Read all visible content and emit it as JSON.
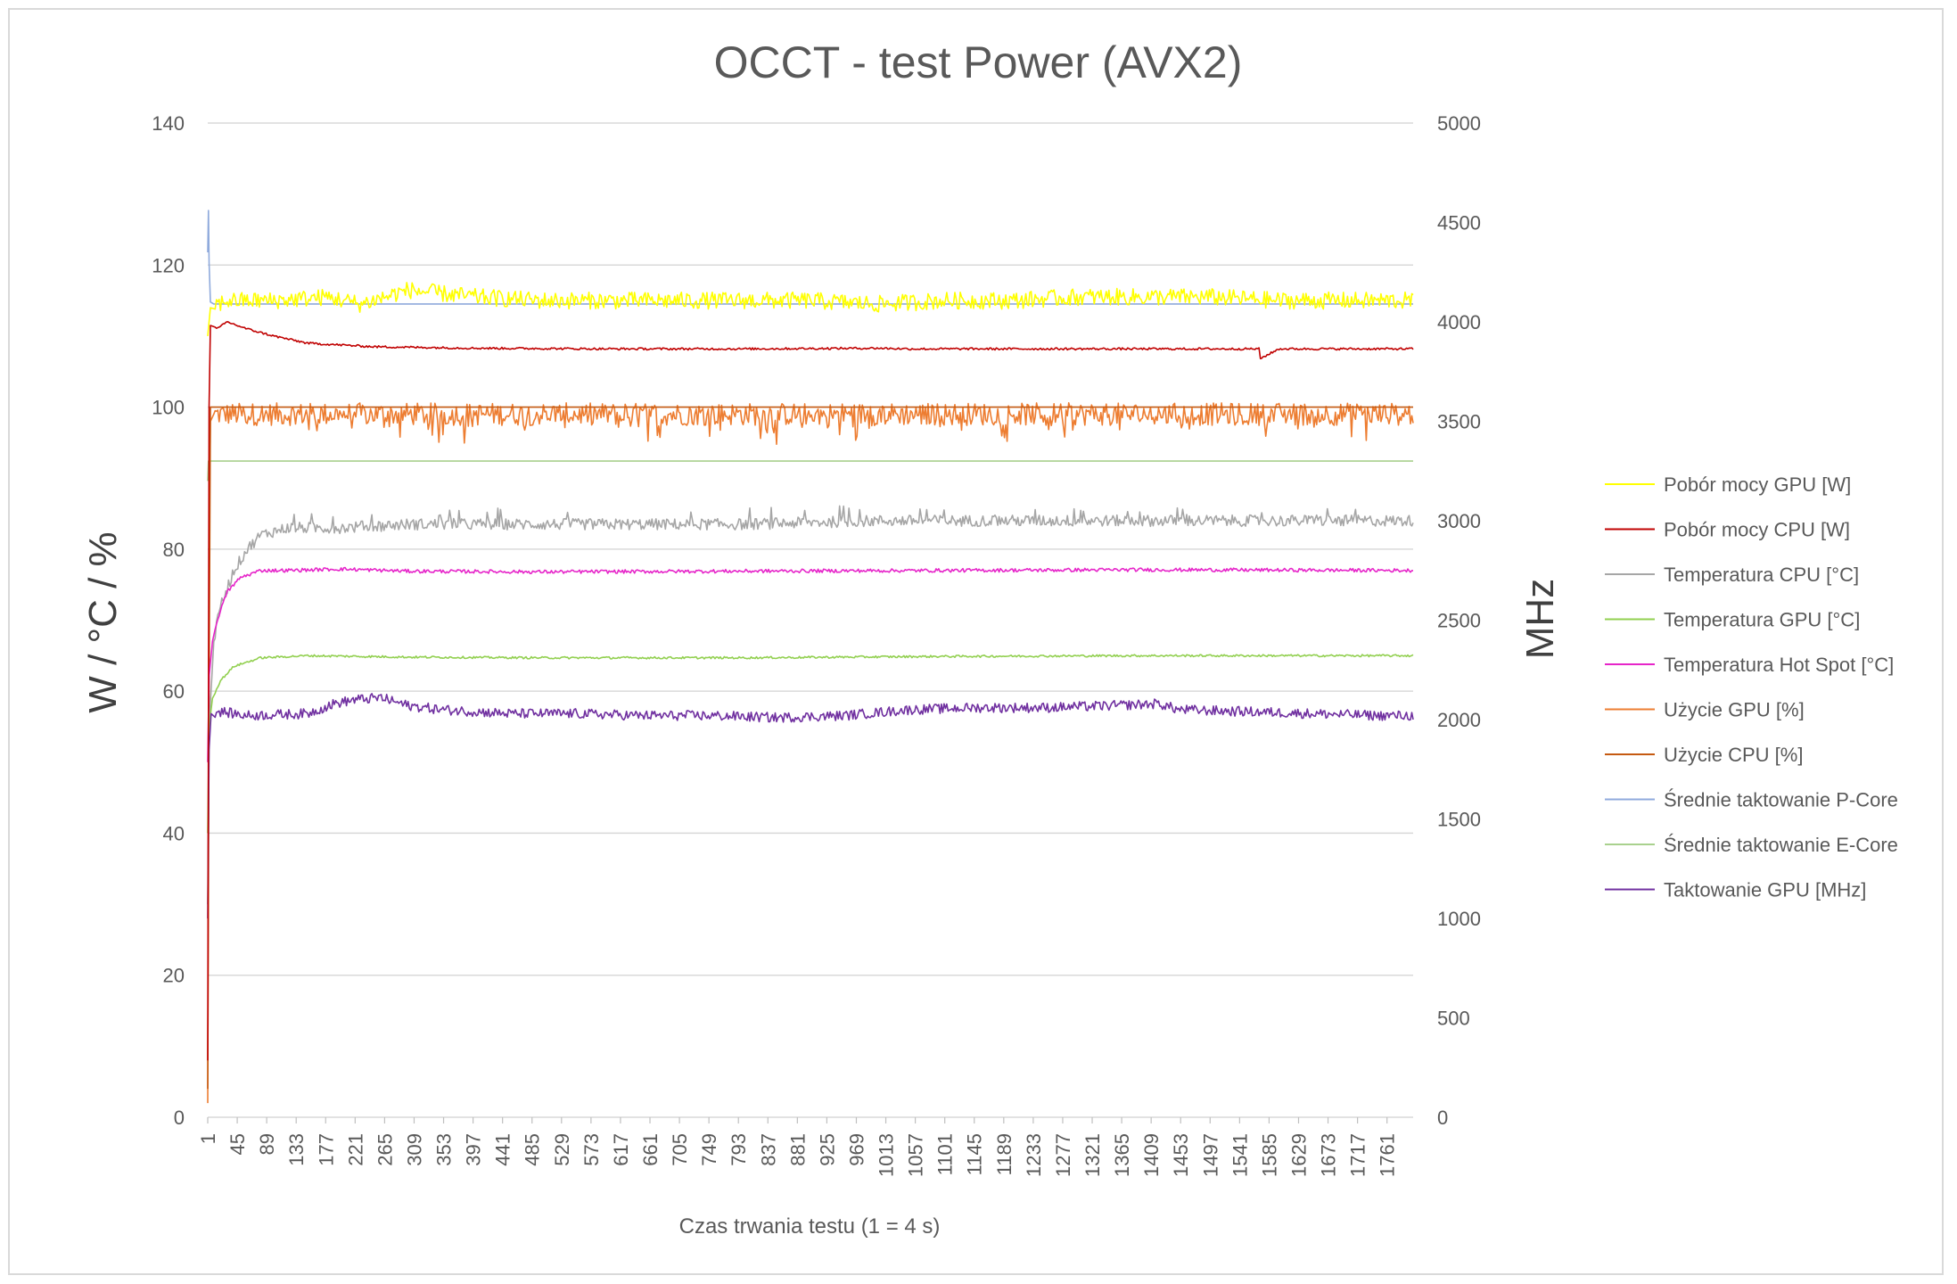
{
  "chart_data": {
    "type": "line",
    "title": "OCCT - test Power (AVX2)",
    "xlabel": "Czas trwania testu (1 = 4 s)",
    "ylabel": "W / °C / %",
    "y2label": "MHz",
    "x_range": [
      1,
      1800
    ],
    "ylim": [
      0,
      140
    ],
    "y2lim": [
      0,
      5000
    ],
    "y_ticks": [
      0,
      20,
      40,
      60,
      80,
      100,
      120,
      140
    ],
    "y2_ticks": [
      0,
      500,
      1000,
      1500,
      2000,
      2500,
      3000,
      3500,
      4000,
      4500,
      5000
    ],
    "x_ticks": [
      1,
      45,
      89,
      133,
      177,
      221,
      265,
      309,
      353,
      397,
      441,
      485,
      529,
      573,
      617,
      661,
      705,
      749,
      793,
      837,
      881,
      925,
      969,
      1013,
      1057,
      1101,
      1145,
      1189,
      1233,
      1277,
      1321,
      1365,
      1409,
      1453,
      1497,
      1541,
      1585,
      1629,
      1673,
      1717,
      1761
    ],
    "grid": "horizontal",
    "legend_position": "right",
    "series": [
      {
        "name": "Pobór mocy GPU [W]",
        "color": "#ffff00",
        "axis": "left",
        "x": [
          1,
          5,
          30,
          100,
          180,
          230,
          300,
          400,
          500,
          600,
          700,
          800,
          900,
          1000,
          1100,
          1200,
          1300,
          1400,
          1500,
          1600,
          1700,
          1800
        ],
        "y": [
          110,
          114,
          115,
          115,
          115.5,
          114.5,
          116.5,
          115.5,
          115,
          115,
          115,
          115,
          115,
          114.5,
          115,
          115,
          115.5,
          115.5,
          115.5,
          115,
          115,
          115
        ]
      },
      {
        "name": "Pobór mocy CPU [W]",
        "color": "#c00000",
        "axis": "left",
        "x": [
          1,
          3,
          5,
          15,
          30,
          60,
          100,
          150,
          250,
          400,
          600,
          800,
          1000,
          1050,
          1051,
          1052,
          1200,
          1400,
          1570,
          1571,
          1600,
          1800
        ],
        "y": [
          8,
          100,
          111.5,
          111,
          112,
          111,
          110,
          109,
          108.5,
          108.3,
          108.2,
          108.2,
          108.3,
          108.2,
          106.5,
          108.2,
          108.2,
          108.2,
          108.2,
          106.8,
          108.2,
          108.2
        ]
      },
      {
        "name": "Temperatura CPU [°C]",
        "color": "#a6a6a6",
        "axis": "left",
        "x": [
          1,
          3,
          10,
          20,
          40,
          60,
          80,
          120,
          200,
          300,
          400,
          600,
          800,
          1000,
          1200,
          1400,
          1600,
          1800
        ],
        "y": [
          30,
          55,
          67,
          72,
          77,
          80,
          82,
          83,
          83,
          83.5,
          83.5,
          83.5,
          83.5,
          84,
          84,
          84,
          84,
          84
        ]
      },
      {
        "name": "Temperatura GPU [°C]",
        "color": "#92d050",
        "axis": "left",
        "x": [
          1,
          3,
          8,
          20,
          40,
          80,
          150,
          300,
          500,
          800,
          1100,
          1400,
          1800
        ],
        "y": [
          40,
          55,
          59,
          61.5,
          63.5,
          64.7,
          65,
          64.8,
          64.7,
          64.7,
          64.9,
          65,
          65
        ]
      },
      {
        "name": "Temperatura Hot Spot [°C]",
        "color": "#e625c9",
        "axis": "left",
        "x": [
          1,
          3,
          8,
          15,
          30,
          50,
          80,
          120,
          200,
          300,
          500,
          800,
          1100,
          1400,
          1800
        ],
        "y": [
          50,
          62,
          67,
          70,
          74,
          76,
          77,
          77,
          77.2,
          76.9,
          76.8,
          76.9,
          77,
          77.1,
          77
        ]
      },
      {
        "name": "Użycie GPU [%]",
        "color": "#ed7d31",
        "axis": "left",
        "x": [
          1,
          3,
          5,
          10,
          1800
        ],
        "y": [
          2,
          80,
          98,
          99,
          99
        ]
      },
      {
        "name": "Użycie CPU [%]",
        "color": "#c55a11",
        "axis": "left",
        "x": [
          1,
          3,
          5,
          1800
        ],
        "y": [
          4,
          60,
          100,
          100
        ]
      },
      {
        "name": "Średnie taktowanie P-Core",
        "color": "#8faadc",
        "axis": "right",
        "x": [
          1,
          2,
          3,
          5,
          10,
          1800
        ],
        "y": [
          4350,
          4560,
          4300,
          4100,
          4090,
          4090
        ]
      },
      {
        "name": "Średnie taktowanie E-Core",
        "color": "#a9d18e",
        "axis": "right",
        "x": [
          1,
          2,
          3,
          6,
          1800
        ],
        "y": [
          3200,
          3300,
          3300,
          3300,
          3300
        ]
      },
      {
        "name": "Taktowanie GPU [MHz]",
        "color": "#7030a0",
        "axis": "right",
        "x": [
          1,
          3,
          6,
          20,
          60,
          150,
          190,
          220,
          260,
          300,
          350,
          450,
          550,
          650,
          750,
          850,
          950,
          1050,
          1150,
          1250,
          1350,
          1420,
          1450,
          1550,
          1650,
          1750,
          1800
        ],
        "y": [
          1000,
          1850,
          2030,
          2040,
          2020,
          2030,
          2080,
          2100,
          2110,
          2070,
          2050,
          2030,
          2030,
          2020,
          2020,
          2010,
          2020,
          2050,
          2060,
          2060,
          2070,
          2080,
          2050,
          2040,
          2030,
          2020,
          2020
        ]
      }
    ]
  }
}
